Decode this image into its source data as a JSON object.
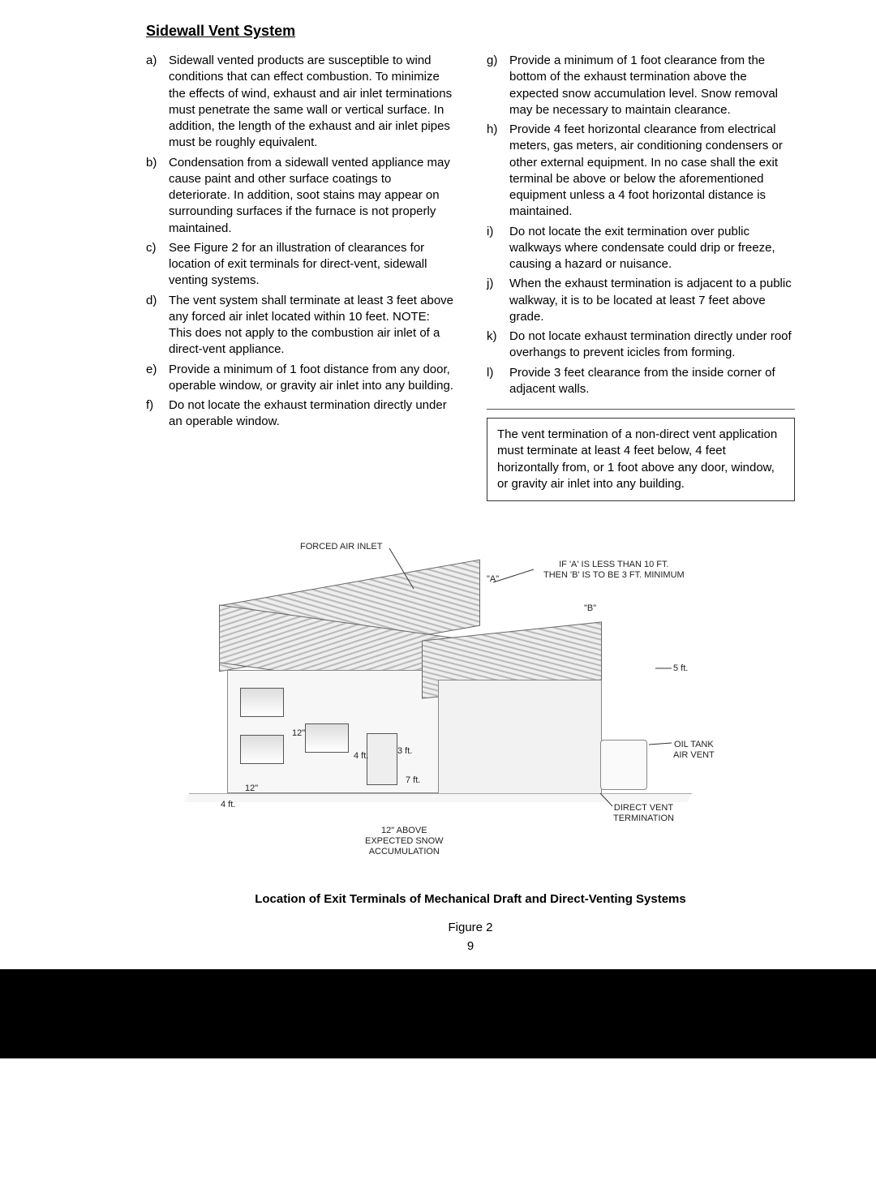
{
  "heading": "Sidewall Vent System",
  "left_items": [
    {
      "m": "a)",
      "t": "Sidewall vented products are susceptible to wind conditions that can effect combustion.  To minimize the effects of wind, exhaust and air inlet terminations must penetrate the same wall or vertical surface.  In addition, the length of the exhaust and air inlet pipes must be roughly equivalent."
    },
    {
      "m": "b)",
      "t": "Condensation from a sidewall vented appliance may cause paint and other surface coatings to deteriorate.  In addition, soot stains may appear on surrounding surfaces if the furnace is not properly maintained."
    },
    {
      "m": "c)",
      "t": "See Figure 2 for an illustration of clearances for location of exit terminals for direct-vent, sidewall venting systems."
    },
    {
      "m": "d)",
      "t": "The vent system shall terminate at least 3 feet above any forced air inlet located within 10 feet.  NOTE: This does not apply to the combustion air inlet of a direct-vent appliance."
    },
    {
      "m": "e)",
      "t": "Provide a minimum of 1 foot distance from any door, operable window, or gravity air inlet into any building."
    },
    {
      "m": "f)",
      "t": "Do not locate the exhaust termination directly under an operable window."
    }
  ],
  "right_items": [
    {
      "m": "g)",
      "t": "Provide a minimum of 1 foot clearance from the bottom of the exhaust termination above the expected snow accumulation level.  Snow removal may be necessary to maintain clearance."
    },
    {
      "m": "h)",
      "t": "Provide 4 feet horizontal clearance from electrical meters, gas meters, air conditioning condensers or other external equipment.  In no case shall the exit terminal be above or below the aforementioned equipment unless a 4 foot horizontal distance is maintained."
    },
    {
      "m": "i)",
      "t": "Do not locate the exit termination over public walkways where condensate could drip or freeze, causing a hazard or nuisance."
    },
    {
      "m": "j)",
      "t": "When the exhaust termination is adjacent to a public walkway, it is to be located at least 7 feet above grade."
    },
    {
      "m": "k)",
      "t": "Do not locate exhaust termination directly under roof overhangs to prevent icicles from forming."
    },
    {
      "m": "l)",
      "t": "Provide 3 feet clearance from the inside corner of adjacent walls."
    }
  ],
  "note_box": "The vent termination of a non-direct vent application must terminate at least 4 feet below, 4 feet horizontally from, or 1 foot above any door, window, or gravity air inlet into any building.",
  "figure": {
    "forced_air_inlet": "FORCED AIR INLET",
    "rule_a": "\"A\"",
    "rule_text": "IF 'A' IS LESS THAN 10 FT.\nTHEN 'B' IS TO BE 3 FT. MINIMUM",
    "rule_b": "\"B\"",
    "five_ft": "5 ft.",
    "twelve_a": "12\"",
    "four_ft_a": "4 ft.",
    "three_ft": "3 ft.",
    "seven_ft": "7 ft.",
    "twelve_b": "12\"",
    "four_ft_b": "4 ft.",
    "snow": "12\" ABOVE\nEXPECTED SNOW\nACCUMULATION",
    "oil_tank": "OIL TANK\nAIR VENT",
    "direct_vent": "DIRECT VENT\nTERMINATION",
    "caption": "Location of Exit Terminals of Mechanical Draft and Direct-Venting Systems",
    "label": "Figure 2"
  },
  "page_number": "9"
}
